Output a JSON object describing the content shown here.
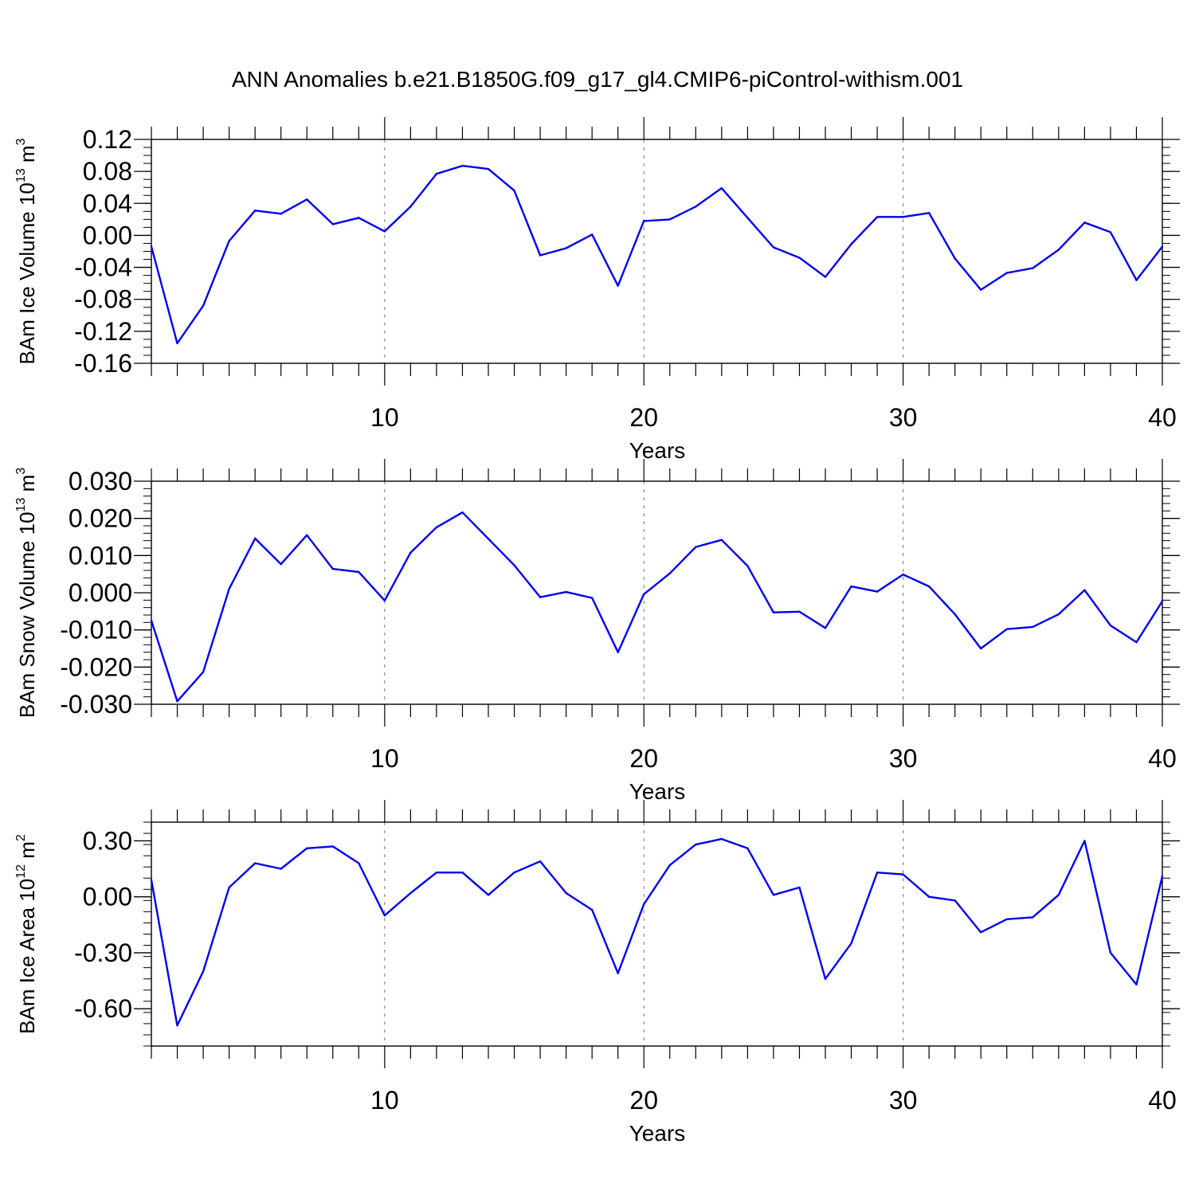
{
  "title": "ANN Anomalies b.e21.B1850G.f09_g17_gl4.CMIP6-piControl-withism.001",
  "colors": {
    "series": "#0000ee",
    "axis": "#000000",
    "grid": "#8c8c8c"
  },
  "chart_data": [
    {
      "type": "line",
      "ylabel_main": "BAm Ice Volume 10",
      "ylabel_exp": "13",
      "ylabel_unit": " m",
      "ylabel_unit_exp": "3",
      "xlabel": "Years",
      "xlim": [
        1,
        40
      ],
      "ylim": [
        -0.16,
        0.12
      ],
      "yticks": [
        0.12,
        0.08,
        0.04,
        0.0,
        -0.04,
        -0.08,
        -0.12,
        -0.16
      ],
      "ytick_labels": [
        "0.12",
        "0.08",
        "0.04",
        "0.00",
        "-0.04",
        "-0.08",
        "-0.12",
        "-0.16"
      ],
      "yminor_step": 0.01,
      "xticks": [
        10,
        20,
        30,
        40
      ],
      "xtick_labels": [
        "10",
        "20",
        "30",
        "40"
      ],
      "x": [
        1,
        2,
        3,
        4,
        5,
        6,
        7,
        8,
        9,
        10,
        11,
        12,
        13,
        14,
        15,
        16,
        17,
        18,
        19,
        20,
        21,
        22,
        23,
        24,
        25,
        26,
        27,
        28,
        29,
        30,
        31,
        32,
        33,
        34,
        35,
        36,
        37,
        38,
        39,
        40
      ],
      "values": [
        -0.014,
        -0.135,
        -0.088,
        -0.007,
        0.031,
        0.027,
        0.045,
        0.014,
        0.022,
        0.005,
        0.036,
        0.077,
        0.087,
        0.083,
        0.056,
        -0.025,
        -0.016,
        0.001,
        -0.063,
        0.018,
        0.02,
        0.036,
        0.059,
        0.022,
        -0.015,
        -0.028,
        -0.052,
        -0.011,
        0.023,
        0.023,
        0.028,
        -0.029,
        -0.068,
        -0.047,
        -0.041,
        -0.018,
        0.016,
        0.004,
        -0.056,
        -0.014
      ],
      "grid": "vertical dashed at major x ticks"
    },
    {
      "type": "line",
      "ylabel_main": "BAm Snow Volume 10",
      "ylabel_exp": "13",
      "ylabel_unit": " m",
      "ylabel_unit_exp": "3",
      "xlabel": "Years",
      "xlim": [
        1,
        40
      ],
      "ylim": [
        -0.03,
        0.03
      ],
      "yticks": [
        0.03,
        0.02,
        0.01,
        0.0,
        -0.01,
        -0.02,
        -0.03
      ],
      "ytick_labels": [
        "0.030",
        "0.020",
        "0.010",
        "0.000",
        "-0.010",
        "-0.020",
        "-0.030"
      ],
      "yminor_step": 0.002,
      "xticks": [
        10,
        20,
        30,
        40
      ],
      "xtick_labels": [
        "10",
        "20",
        "30",
        "40"
      ],
      "x": [
        1,
        2,
        3,
        4,
        5,
        6,
        7,
        8,
        9,
        10,
        11,
        12,
        13,
        14,
        15,
        16,
        17,
        18,
        19,
        20,
        21,
        22,
        23,
        24,
        25,
        26,
        27,
        28,
        29,
        30,
        31,
        32,
        33,
        34,
        35,
        36,
        37,
        38,
        39,
        40
      ],
      "values": [
        -0.0075,
        -0.0292,
        -0.0213,
        0.001,
        0.0146,
        0.0077,
        0.0155,
        0.0064,
        0.0056,
        -0.0021,
        0.0108,
        0.0176,
        0.0216,
        0.0145,
        0.0074,
        -0.0012,
        0.0002,
        -0.0014,
        -0.016,
        -0.0004,
        0.0052,
        0.0123,
        0.0142,
        0.0072,
        -0.0053,
        -0.0051,
        -0.0095,
        0.0017,
        0.0003,
        0.0049,
        0.0017,
        -0.0058,
        -0.015,
        -0.0098,
        -0.0092,
        -0.0058,
        0.0007,
        -0.0088,
        -0.0133,
        -0.0023
      ],
      "grid": "vertical dashed at major x ticks"
    },
    {
      "type": "line",
      "ylabel_main": "BAm Ice Area 10",
      "ylabel_exp": "12",
      "ylabel_unit": " m",
      "ylabel_unit_exp": "2",
      "xlabel": "Years",
      "xlim": [
        1,
        40
      ],
      "ylim": [
        -0.8,
        0.4
      ],
      "yticks": [
        0.3,
        0.0,
        -0.3,
        -0.6
      ],
      "ytick_labels": [
        "0.30",
        "0.00",
        "-0.30",
        "-0.60"
      ],
      "yminor_step": 0.06,
      "xticks": [
        10,
        20,
        30,
        40
      ],
      "xtick_labels": [
        "10",
        "20",
        "30",
        "40"
      ],
      "x": [
        1,
        2,
        3,
        4,
        5,
        6,
        7,
        8,
        9,
        10,
        11,
        12,
        13,
        14,
        15,
        16,
        17,
        18,
        19,
        20,
        21,
        22,
        23,
        24,
        25,
        26,
        27,
        28,
        29,
        30,
        31,
        32,
        33,
        34,
        35,
        36,
        37,
        38,
        39,
        40
      ],
      "values": [
        0.09,
        -0.69,
        -0.4,
        0.05,
        0.18,
        0.15,
        0.26,
        0.27,
        0.18,
        -0.1,
        0.02,
        0.13,
        0.13,
        0.01,
        0.13,
        0.19,
        0.02,
        -0.07,
        -0.41,
        -0.04,
        0.17,
        0.28,
        0.31,
        0.26,
        0.01,
        0.05,
        -0.44,
        -0.25,
        0.13,
        0.12,
        0.0,
        -0.02,
        -0.19,
        -0.12,
        -0.11,
        0.01,
        0.3,
        -0.3,
        -0.47,
        0.11
      ],
      "grid": "vertical dashed at major x ticks"
    }
  ]
}
